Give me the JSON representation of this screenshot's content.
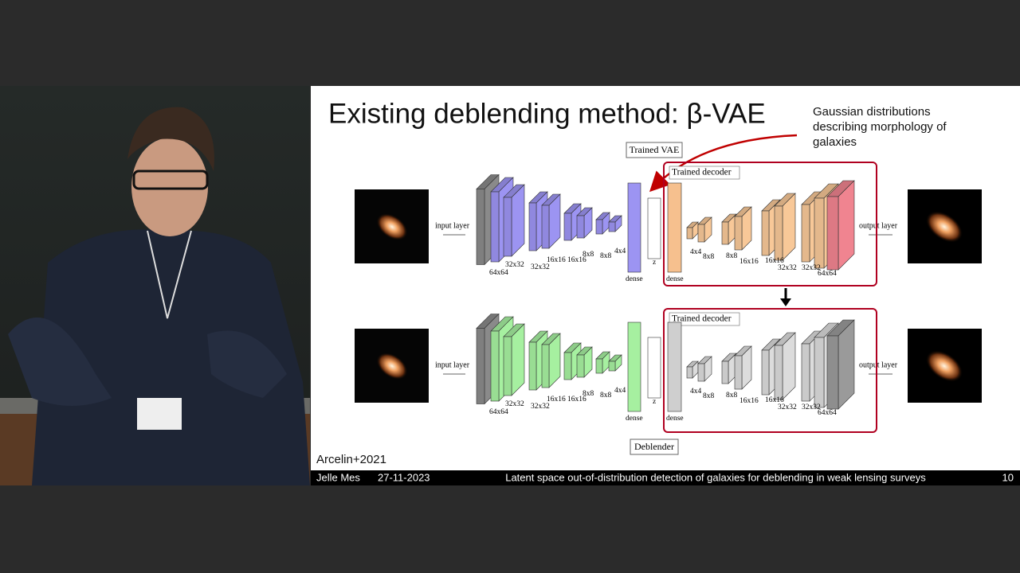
{
  "slide": {
    "title": "Existing deblending method: β-VAE",
    "annotation": [
      "Gaussian distributions",
      "describing morphology of",
      "galaxies"
    ],
    "citation": "Arcelin+2021"
  },
  "diagram": {
    "trained_vae": "Trained VAE",
    "deblender": "Deblender",
    "rows": [
      {
        "decoder_label": "Trained decoder",
        "input_label": "input layer",
        "output_label": "output layer",
        "encoder_sizes": [
          "64x64",
          "32x32",
          "32x32",
          "16x16",
          "16x16",
          "8x8",
          "8x8",
          "4x4"
        ],
        "encoder_dense": "dense",
        "z_label": "z",
        "decoder_dense": "dense",
        "decoder_sizes": [
          "4x4",
          "8x8",
          "8x8",
          "16x16",
          "16x16",
          "32x32",
          "32x32",
          "64x64"
        ]
      },
      {
        "decoder_label": "Trained decoder",
        "input_label": "input layer",
        "output_label": "output layer",
        "encoder_sizes": [
          "64x64",
          "32x32",
          "32x32",
          "16x16",
          "16x16",
          "8x8",
          "8x8",
          "4x4"
        ],
        "encoder_dense": "dense",
        "z_label": "z",
        "decoder_dense": "dense",
        "decoder_sizes": [
          "4x4",
          "8x8",
          "8x8",
          "16x16",
          "16x16",
          "32x32",
          "32x32",
          "64x64"
        ]
      }
    ]
  },
  "footer": {
    "author": "Jelle Mes",
    "date": "27-11-2023",
    "talk_title": "Latent space out-of-distribution detection of galaxies for deblending in weak lensing surveys",
    "page": "10"
  }
}
